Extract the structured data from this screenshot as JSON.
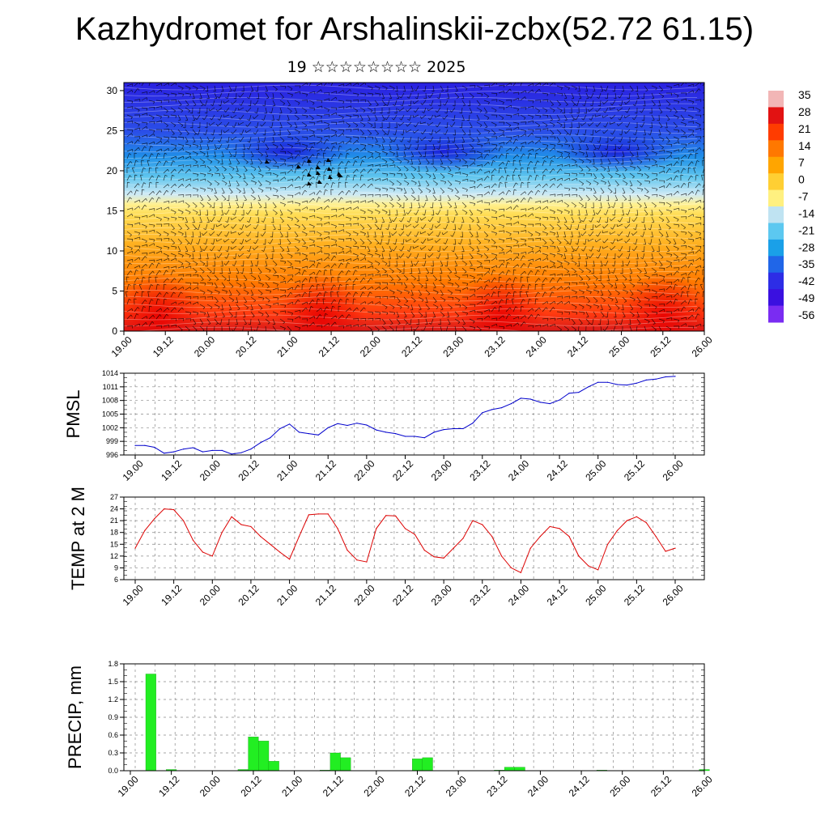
{
  "title": "Kazhydromet for Arshalinskii-zcbx(52.72 61.15)",
  "subtitle": "19 ☆☆☆☆☆☆☆☆ 2025",
  "x_tick_labels": [
    "19.00",
    "19.12",
    "20.00",
    "20.12",
    "21.00",
    "21.12",
    "22.00",
    "22.12",
    "23.00",
    "23.12",
    "24.00",
    "24.12",
    "25.00",
    "25.12",
    "26.00"
  ],
  "chart_data": [
    {
      "type": "heatmap",
      "name": "temperature-wind-cross-section",
      "y_ticks": [
        0,
        5,
        10,
        15,
        20,
        25,
        30
      ],
      "ylim": [
        0,
        31
      ],
      "colorbar": {
        "labels": [
          "35",
          "28",
          "21",
          "14",
          "7",
          "0",
          "-7",
          "-14",
          "-21",
          "-28",
          "-35",
          "-42",
          "-49",
          "-56"
        ],
        "colors": [
          "#f2b6b6",
          "#e21212",
          "#ff3c00",
          "#ff7800",
          "#ffa500",
          "#ffcf33",
          "#fff080",
          "#bfe3f2",
          "#5cc8f0",
          "#1aa0e8",
          "#2066e8",
          "#2d2de6",
          "#3a10e0",
          "#7a2cf2"
        ]
      }
    },
    {
      "type": "line",
      "name": "PMSL",
      "ylabel": "PMSL",
      "ylim": [
        996,
        1014
      ],
      "y_ticks": [
        996,
        999,
        1002,
        1005,
        1008,
        1011,
        1014
      ],
      "color": "#0000cc",
      "x": [
        0,
        1,
        2,
        3,
        4,
        5,
        6,
        7,
        8,
        9,
        10,
        11,
        12,
        13,
        14,
        15,
        16,
        17,
        18,
        19,
        20,
        21,
        22,
        23,
        24,
        25,
        26,
        27,
        28,
        29,
        30,
        31,
        32,
        33,
        34,
        35,
        36,
        37,
        38,
        39,
        40,
        41,
        42,
        43,
        44,
        45,
        46,
        47,
        48,
        49,
        50,
        51,
        52,
        53,
        54,
        55,
        56
      ],
      "values": [
        998.1,
        998.1,
        997.7,
        996.4,
        996.7,
        997.3,
        997.6,
        996.7,
        997.0,
        997.0,
        996.2,
        996.5,
        997.3,
        998.7,
        999.8,
        1001.8,
        1002.8,
        1001.0,
        1000.7,
        1000.4,
        1002.0,
        1002.9,
        1002.5,
        1003.0,
        1002.6,
        1001.5,
        1001.0,
        1000.7,
        1000.1,
        1000.1,
        999.8,
        1001.0,
        1001.6,
        1001.8,
        1001.8,
        1003.0,
        1005.3,
        1006.0,
        1006.4,
        1007.3,
        1008.5,
        1008.3,
        1007.6,
        1007.3,
        1008.1,
        1009.6,
        1009.8,
        1011.0,
        1012.0,
        1012.0,
        1011.5,
        1011.4,
        1011.8,
        1012.5,
        1012.7,
        1013.2,
        1013.3
      ]
    },
    {
      "type": "line",
      "name": "TEMP at 2 M",
      "ylabel": "TEMP at 2 M",
      "ylim": [
        6,
        27
      ],
      "y_ticks": [
        6,
        9,
        12,
        15,
        18,
        21,
        24,
        27
      ],
      "color": "#dd0000",
      "x": [
        0,
        1,
        2,
        3,
        4,
        5,
        6,
        7,
        8,
        9,
        10,
        11,
        12,
        13,
        14,
        15,
        16,
        17,
        18,
        19,
        20,
        21,
        22,
        23,
        24,
        25,
        26,
        27,
        28,
        29,
        30,
        31,
        32,
        33,
        34,
        35,
        36,
        37,
        38,
        39,
        40,
        41,
        42,
        43,
        44,
        45,
        46,
        47,
        48,
        49,
        50,
        51,
        52,
        53,
        54,
        55,
        56
      ],
      "values": [
        14,
        18.5,
        21.5,
        24,
        23.8,
        21,
        16,
        13,
        12,
        18,
        22,
        20,
        19.5,
        17,
        15,
        13,
        11.2,
        17,
        22.5,
        22.7,
        22.7,
        19,
        13.5,
        11,
        10.5,
        19,
        22.3,
        22.2,
        19,
        17.5,
        13.5,
        11.8,
        11.5,
        14,
        16.5,
        21,
        20,
        17,
        12,
        9,
        7.8,
        14,
        17,
        19.5,
        19,
        17,
        12,
        9.5,
        8.5,
        15,
        18.5,
        21,
        22,
        20.5,
        17,
        13.2,
        14
      ]
    },
    {
      "type": "bar",
      "name": "PRECIP, mm",
      "ylabel": "PRECIP, mm",
      "ylim": [
        0,
        1.8
      ],
      "y_ticks": [
        "0.0",
        "0.3",
        "0.6",
        "0.9",
        "1.2",
        "1.5",
        "1.8"
      ],
      "color": "#22ee22",
      "x": [
        0,
        1,
        2,
        3,
        4,
        5,
        6,
        7,
        8,
        9,
        10,
        11,
        12,
        13,
        14,
        15,
        16,
        17,
        18,
        19,
        20,
        21,
        22,
        23,
        24,
        25,
        26,
        27,
        28,
        29,
        30,
        31,
        32,
        33,
        34,
        35,
        36,
        37,
        38,
        39,
        40,
        41,
        42,
        43,
        44,
        45,
        46,
        47,
        48,
        49,
        50,
        51,
        52,
        53,
        54,
        55,
        56
      ],
      "values": [
        0,
        0,
        1.63,
        0,
        0.02,
        0,
        0,
        0,
        0,
        0,
        0,
        0.02,
        0.57,
        0.5,
        0.16,
        0,
        0,
        0,
        0,
        0.01,
        0.3,
        0.22,
        0,
        0,
        0,
        0,
        0,
        0,
        0.2,
        0.22,
        0,
        0,
        0,
        0,
        0,
        0,
        0.01,
        0.06,
        0.06,
        0,
        0,
        0,
        0,
        0,
        0,
        0,
        0.01,
        0,
        0,
        0,
        0,
        0,
        0,
        0,
        0,
        0,
        0.02
      ]
    }
  ]
}
